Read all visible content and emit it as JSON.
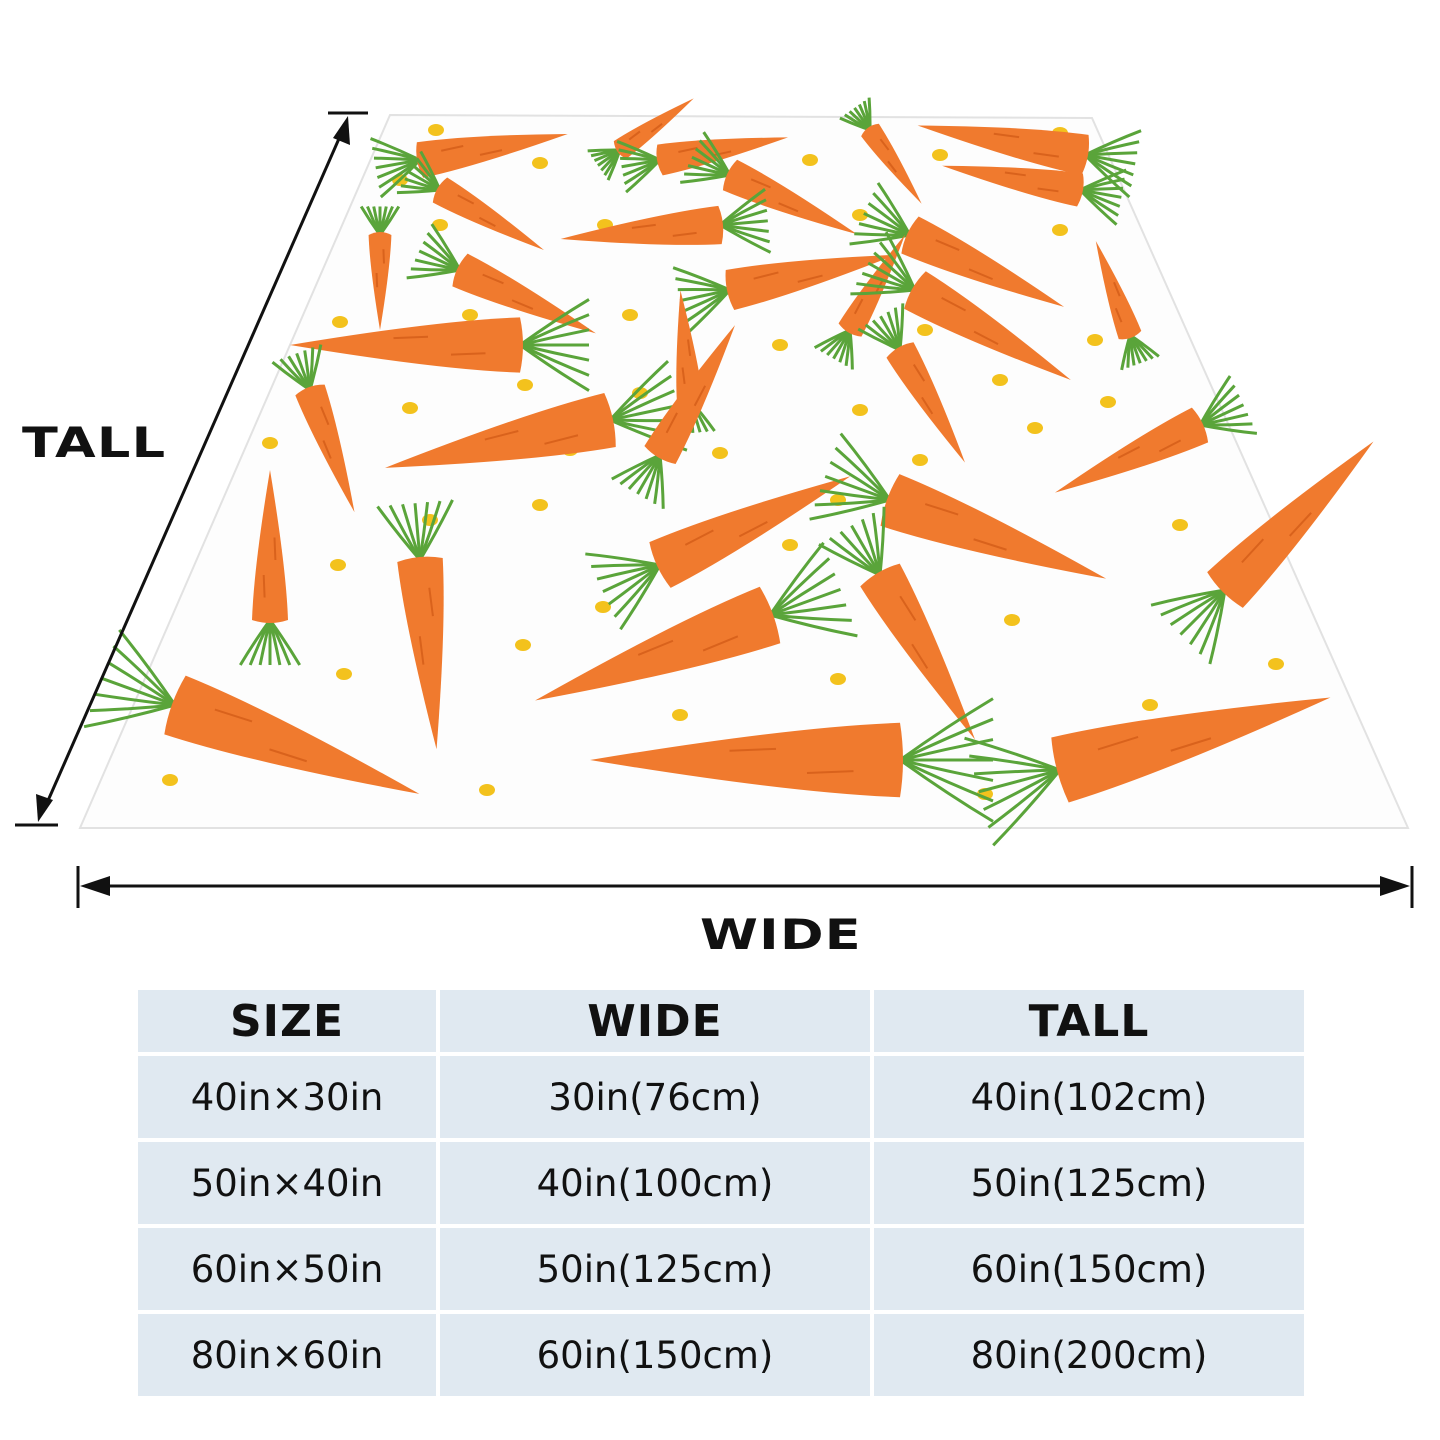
{
  "product": {
    "pattern": "carrots",
    "colors": {
      "carrot": "#f07a2e",
      "leaves": "#5aa43a",
      "dots": "#f3c21d",
      "table_cell": "#e0e9f1"
    }
  },
  "dimensions": {
    "tall_label": "TALL",
    "wide_label": "WIDE"
  },
  "size_table": {
    "headers": [
      "SIZE",
      "WIDE",
      "TALL"
    ],
    "rows": [
      [
        "40in×30in",
        "30in(76cm)",
        "40in(102cm)"
      ],
      [
        "50in×40in",
        "40in(100cm)",
        "50in(125cm)"
      ],
      [
        "60in×50in",
        "50in(125cm)",
        "60in(150cm)"
      ],
      [
        "80in×60in",
        "60in(150cm)",
        "80in(200cm)"
      ]
    ]
  }
}
